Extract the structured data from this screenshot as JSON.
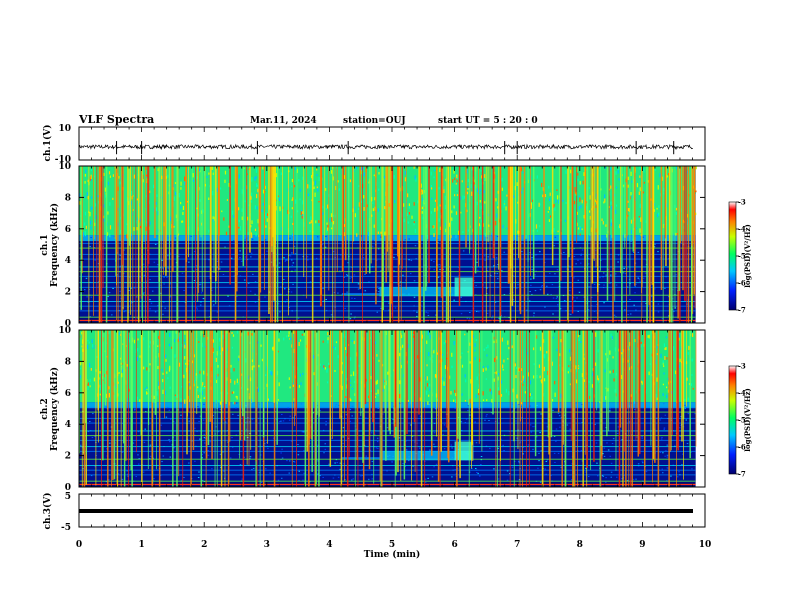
{
  "header": {
    "title": "VLF Spectra",
    "date": "Mar.11, 2024",
    "station": "station=OUJ",
    "start_ut": "start  UT =  5 : 20 : 0"
  },
  "chart_data": [
    {
      "type": "line",
      "name": "ch1-waveform",
      "ylabel": "ch.1(V)",
      "ylim": [
        -10,
        10
      ],
      "yticks": [
        "10",
        "-10"
      ],
      "xlim": [
        0,
        10
      ],
      "baseline": -2,
      "noise_amplitude": 1.2,
      "spikes": [
        0.6,
        1.0,
        2.85,
        4.3,
        6.8,
        7.0,
        8.9,
        9.5
      ]
    },
    {
      "type": "heatmap",
      "name": "ch1-spectrogram",
      "ylabel_line1": "ch.1",
      "ylabel_line2": "Frequency (kHz)",
      "ylim": [
        0,
        10
      ],
      "yticks": [
        "0",
        "2",
        "4",
        "6",
        "8",
        "10"
      ],
      "xlim": [
        0,
        9.85
      ],
      "band_edge_khz": 5.6,
      "colorbar": {
        "label": "log(PSD)(V²/Hz)",
        "min": -7,
        "max": -3,
        "ticks": [
          "-3",
          "-4",
          "-5",
          "-6",
          "-7"
        ]
      }
    },
    {
      "type": "heatmap",
      "name": "ch2-spectrogram",
      "ylabel_line1": "ch.2",
      "ylabel_line2": "Frequency (kHz)",
      "ylim": [
        0,
        10
      ],
      "yticks": [
        "0",
        "2",
        "4",
        "6",
        "8",
        "10"
      ],
      "xlim": [
        0,
        9.85
      ],
      "band_edge_khz": 5.4,
      "colorbar": {
        "label": "log(PSD)(V²/Hz)",
        "min": -7,
        "max": -3,
        "ticks": [
          "-3",
          "-4",
          "-5",
          "-6",
          "-7"
        ]
      }
    },
    {
      "type": "line",
      "name": "ch3-waveform",
      "ylabel": "ch.3(V)",
      "ylim": [
        -5,
        5
      ],
      "yticks": [
        "5",
        "-5"
      ],
      "xlim": [
        0,
        10
      ],
      "baseline": -2
    }
  ],
  "xaxis": {
    "label": "Time (min)",
    "ticks": [
      "0",
      "1",
      "2",
      "3",
      "4",
      "5",
      "6",
      "7",
      "8",
      "9",
      "10"
    ]
  }
}
